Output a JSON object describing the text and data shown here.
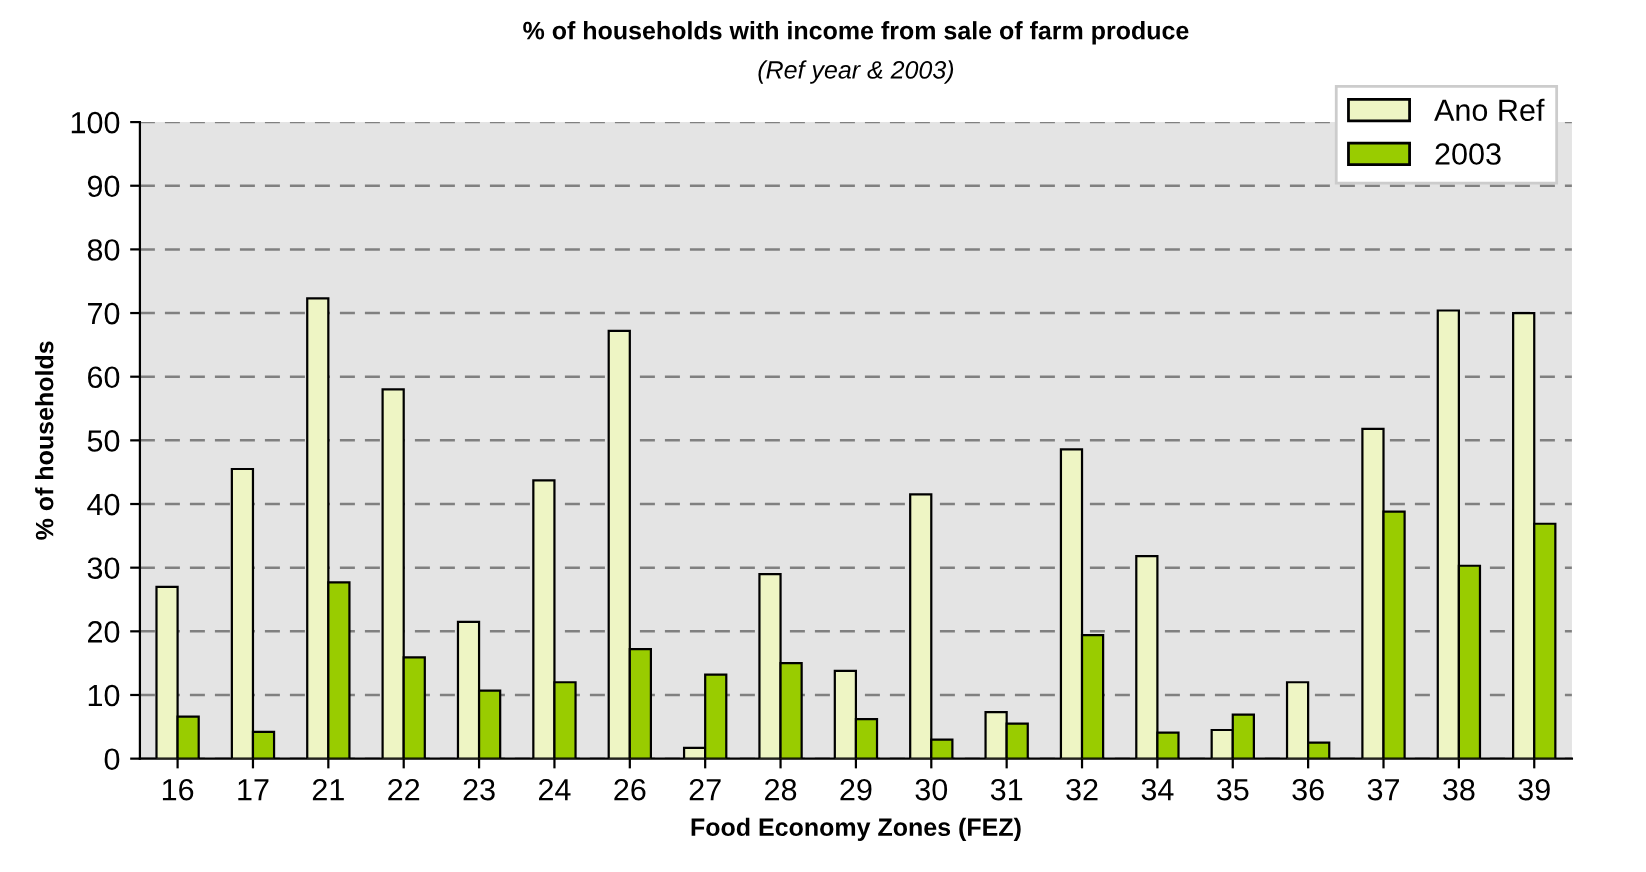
{
  "chart_data": {
    "type": "bar",
    "title": "% of households with income from sale of farm produce",
    "subtitle": "(Ref year & 2003)",
    "xlabel": "Food Economy Zones (FEZ)",
    "ylabel": "% of households",
    "categories": [
      "16",
      "17",
      "21",
      "22",
      "23",
      "24",
      "26",
      "27",
      "28",
      "29",
      "30",
      "31",
      "32",
      "34",
      "35",
      "36",
      "37",
      "38",
      "39"
    ],
    "series": [
      {
        "name": "Ano Ref",
        "color": "#eef5c4",
        "values": [
          27,
          45.5,
          72.3,
          58,
          21.5,
          43.7,
          67.2,
          1.7,
          29,
          13.8,
          41.5,
          7.3,
          48.6,
          31.8,
          4.5,
          12,
          51.8,
          70.4,
          70
        ]
      },
      {
        "name": "2003",
        "color": "#99cc00",
        "values": [
          6.6,
          4.2,
          27.7,
          15.9,
          10.7,
          12,
          17.2,
          13.2,
          15,
          6.2,
          3,
          5.5,
          19.4,
          4.1,
          6.9,
          2.5,
          38.8,
          30.3,
          36.9
        ]
      }
    ],
    "ylim": [
      0,
      100
    ],
    "yticks": [
      0,
      10,
      20,
      30,
      40,
      50,
      60,
      70,
      80,
      90,
      100
    ],
    "grid": "y",
    "legend": "top right"
  }
}
